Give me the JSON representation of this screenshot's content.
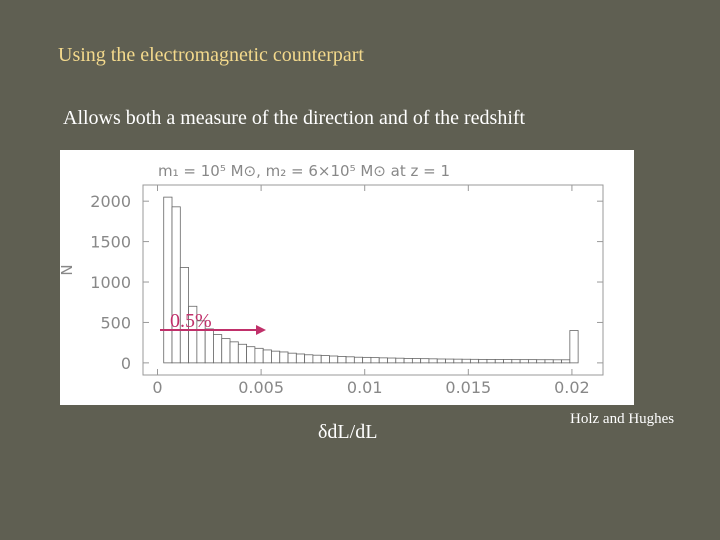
{
  "slide": {
    "heading": "Using the electromagnetic counterpart",
    "subheading": "Allows both a measure of the direction and of the redshift",
    "credit": "Holz and Hughes"
  },
  "chart_data": {
    "type": "histogram",
    "title": "m₁ = 10⁵ M⊙, m₂ = 6×10⁵ M⊙ at z = 1",
    "x_label": "δdL/dL",
    "y_label": "N",
    "annotation": "0.5%",
    "bins": [
      0.0003,
      0.0007,
      0.0011,
      0.0015,
      0.0019,
      0.0023,
      0.0027,
      0.0031,
      0.0035,
      0.0039,
      0.0043,
      0.0047,
      0.0051,
      0.0055,
      0.0059,
      0.0063,
      0.0067,
      0.0071,
      0.0075,
      0.0079,
      0.0083,
      0.0087,
      0.0091,
      0.0095,
      0.0099,
      0.0103,
      0.0107,
      0.0111,
      0.0115,
      0.0119,
      0.0123,
      0.0127,
      0.0131,
      0.0135,
      0.0139,
      0.0143,
      0.0147,
      0.0151,
      0.0155,
      0.0159,
      0.0163,
      0.0167,
      0.0171,
      0.0175,
      0.0179,
      0.0183,
      0.0187,
      0.0191,
      0.0195,
      0.0199,
      0.0203
    ],
    "counts": [
      2050,
      1930,
      1180,
      700,
      520,
      420,
      350,
      300,
      260,
      230,
      200,
      180,
      160,
      145,
      135,
      120,
      110,
      100,
      95,
      90,
      85,
      80,
      75,
      70,
      68,
      65,
      62,
      60,
      58,
      55,
      53,
      52,
      50,
      48,
      47,
      46,
      45,
      44,
      43,
      42,
      42,
      41,
      40,
      40,
      40,
      39,
      39,
      38,
      38,
      400
    ],
    "color": "#ffffff",
    "xlim": [
      -0.0007,
      0.0215
    ],
    "ylim": [
      -150,
      2200
    ],
    "xticks": [
      0,
      0.005,
      0.01,
      0.015,
      0.02
    ],
    "yticks": [
      0,
      500,
      1000,
      1500,
      2000
    ]
  }
}
